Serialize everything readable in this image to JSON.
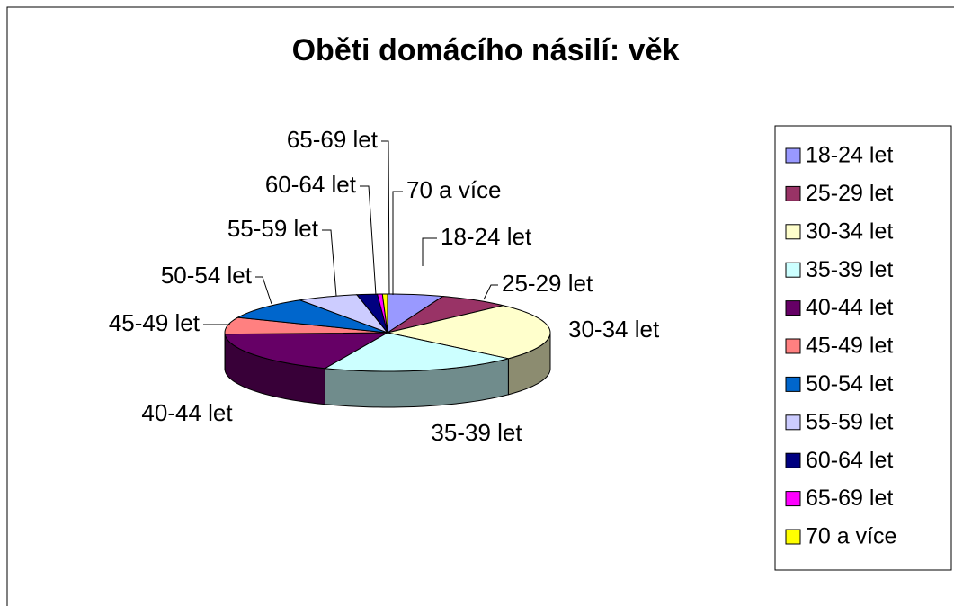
{
  "chart_data": {
    "type": "pie3d",
    "title": "Oběti domácího násilí: věk",
    "categories": [
      "18-24 let",
      "25-29 let",
      "30-34 let",
      "35-39 let",
      "40-44 let",
      "45-49 let",
      "50-54 let",
      "55-59 let",
      "60-64 let",
      "65-69 let",
      "70 a více"
    ],
    "values": [
      5.5,
      7,
      24,
      19.5,
      18,
      7,
      9.5,
      6,
      2,
      0.5,
      0.5
    ],
    "colors": [
      "#9999ff",
      "#993366",
      "#ffffcc",
      "#ccffff",
      "#660066",
      "#ff8080",
      "#0066cc",
      "#ccccff",
      "#000080",
      "#ff00ff",
      "#ffff00"
    ],
    "legend": "right"
  }
}
